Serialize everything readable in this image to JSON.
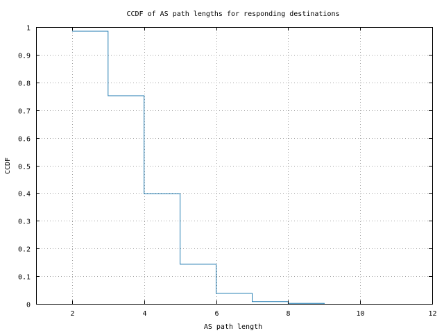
{
  "chart_data": {
    "type": "line",
    "style": "step",
    "title": "CCDF of AS path lengths for responding destinations",
    "xlabel": "AS path length",
    "ylabel": "CCDF",
    "xlim": [
      1,
      12
    ],
    "ylim": [
      0,
      1
    ],
    "xticks": [
      2,
      4,
      6,
      8,
      10,
      12
    ],
    "yticks": [
      0,
      0.1,
      0.2,
      0.3,
      0.4,
      0.5,
      0.6,
      0.7,
      0.8,
      0.9,
      1
    ],
    "grid": true,
    "series": [
      {
        "color": "#1f7ab0",
        "x": [
          2,
          3,
          4,
          5,
          6,
          7,
          8,
          9
        ],
        "y": [
          0.985,
          0.752,
          0.398,
          0.143,
          0.038,
          0.008,
          0.002,
          0.0
        ]
      }
    ]
  }
}
